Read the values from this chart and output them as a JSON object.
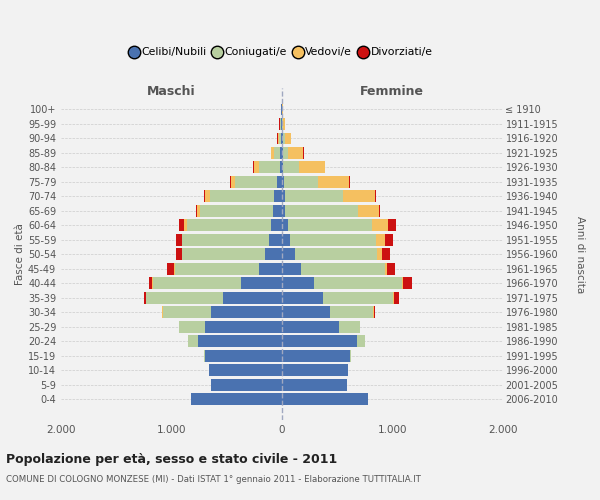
{
  "age_groups": [
    "100+",
    "95-99",
    "90-94",
    "85-89",
    "80-84",
    "75-79",
    "70-74",
    "65-69",
    "60-64",
    "55-59",
    "50-54",
    "45-49",
    "40-44",
    "35-39",
    "30-34",
    "25-29",
    "20-24",
    "15-19",
    "10-14",
    "5-9",
    "0-4"
  ],
  "birth_years": [
    "≤ 1910",
    "1911-1915",
    "1916-1920",
    "1921-1925",
    "1926-1930",
    "1931-1935",
    "1936-1940",
    "1941-1945",
    "1946-1950",
    "1951-1955",
    "1956-1960",
    "1961-1965",
    "1966-1970",
    "1971-1975",
    "1976-1980",
    "1981-1985",
    "1986-1990",
    "1991-1995",
    "1996-2000",
    "2001-2005",
    "2006-2010"
  ],
  "colors": {
    "celibi": "#4a72b0",
    "coniugati": "#b8cfa0",
    "vedovi": "#f5c060",
    "divorziati": "#cc1111"
  },
  "males_celibi": [
    5,
    8,
    12,
    15,
    20,
    40,
    70,
    80,
    100,
    120,
    150,
    210,
    370,
    530,
    640,
    700,
    760,
    700,
    660,
    640,
    820
  ],
  "males_coniugati": [
    1,
    8,
    18,
    55,
    190,
    380,
    580,
    660,
    760,
    780,
    750,
    760,
    800,
    700,
    440,
    230,
    90,
    8,
    1,
    1,
    0
  ],
  "males_vedovi": [
    1,
    4,
    8,
    25,
    45,
    45,
    45,
    28,
    25,
    8,
    8,
    3,
    2,
    2,
    1,
    1,
    1,
    0,
    0,
    0,
    0
  ],
  "males_divorziati": [
    1,
    2,
    2,
    4,
    4,
    8,
    8,
    8,
    45,
    55,
    55,
    65,
    28,
    18,
    8,
    3,
    1,
    0,
    0,
    0,
    0
  ],
  "females_celibi": [
    1,
    4,
    8,
    8,
    12,
    18,
    25,
    28,
    55,
    75,
    115,
    175,
    290,
    370,
    440,
    520,
    680,
    620,
    600,
    590,
    780
  ],
  "females_coniugati": [
    1,
    6,
    18,
    45,
    140,
    305,
    530,
    660,
    760,
    780,
    750,
    760,
    800,
    640,
    390,
    185,
    72,
    6,
    1,
    1,
    0
  ],
  "females_vedovi": [
    4,
    18,
    55,
    140,
    235,
    285,
    290,
    195,
    145,
    75,
    45,
    18,
    8,
    4,
    4,
    2,
    1,
    1,
    0,
    0,
    0
  ],
  "females_divorziati": [
    1,
    1,
    2,
    4,
    4,
    8,
    8,
    8,
    75,
    75,
    65,
    75,
    85,
    45,
    12,
    3,
    1,
    0,
    0,
    0,
    0
  ],
  "title": "Popolazione per età, sesso e stato civile - 2011",
  "subtitle": "COMUNE DI COLOGNO MONZESE (MI) - Dati ISTAT 1° gennaio 2011 - Elaborazione TUTTITALIA.IT",
  "ylabel_left": "Fasce di età",
  "ylabel_right": "Anni di nascita",
  "xlabel_left": "Maschi",
  "xlabel_right": "Femmine",
  "xlim": 2000,
  "background": "#f2f2f2",
  "legend_labels": [
    "Celibi/Nubili",
    "Coniugati/e",
    "Vedovi/e",
    "Divorziati/e"
  ]
}
